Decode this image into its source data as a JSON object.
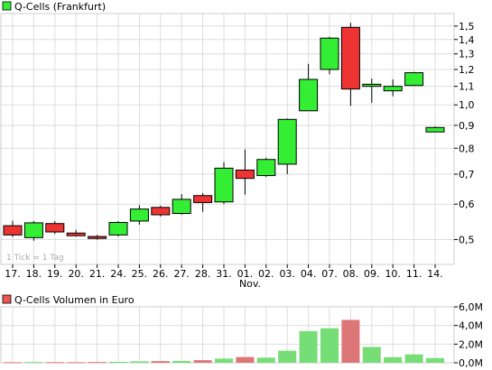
{
  "chart_data": [
    {
      "type": "candlestick",
      "title": "Q-Cells (Frankfurt)",
      "note": "1 Tick = 1 Tag",
      "month_label": "Nov.",
      "scale": "log",
      "ylim": [
        0.44,
        1.6
      ],
      "yticks": [
        "1,5",
        "1,4",
        "1,3",
        "1,2",
        "1,1",
        "1,0",
        "0,9",
        "0,8",
        "0,7",
        "0,6",
        "0,5"
      ],
      "grid": true,
      "colors": {
        "up": "#33ee33",
        "down": "#ee3333",
        "grid": "#dddddd"
      },
      "categories": [
        "17.",
        "18.",
        "19.",
        "20.",
        "21.",
        "24.",
        "25.",
        "26.",
        "27.",
        "28.",
        "31.",
        "01.",
        "02.",
        "03.",
        "04.",
        "07.",
        "08.",
        "09.",
        "10.",
        "11.",
        "14."
      ],
      "ohlc": [
        {
          "open": 0.537,
          "high": 0.551,
          "low": 0.507,
          "close": 0.512
        },
        {
          "open": 0.505,
          "high": 0.55,
          "low": 0.497,
          "close": 0.545
        },
        {
          "open": 0.543,
          "high": 0.55,
          "low": 0.515,
          "close": 0.52
        },
        {
          "open": 0.517,
          "high": 0.525,
          "low": 0.508,
          "close": 0.51
        },
        {
          "open": 0.508,
          "high": 0.512,
          "low": 0.5,
          "close": 0.503
        },
        {
          "open": 0.512,
          "high": 0.55,
          "low": 0.508,
          "close": 0.546
        },
        {
          "open": 0.55,
          "high": 0.597,
          "low": 0.54,
          "close": 0.585
        },
        {
          "open": 0.59,
          "high": 0.595,
          "low": 0.563,
          "close": 0.568
        },
        {
          "open": 0.572,
          "high": 0.632,
          "low": 0.568,
          "close": 0.615
        },
        {
          "open": 0.627,
          "high": 0.635,
          "low": 0.577,
          "close": 0.605
        },
        {
          "open": 0.607,
          "high": 0.745,
          "low": 0.6,
          "close": 0.722
        },
        {
          "open": 0.715,
          "high": 0.795,
          "low": 0.63,
          "close": 0.685
        },
        {
          "open": 0.695,
          "high": 0.762,
          "low": 0.69,
          "close": 0.755
        },
        {
          "open": 0.737,
          "high": 0.932,
          "low": 0.7,
          "close": 0.928
        },
        {
          "open": 0.97,
          "high": 1.235,
          "low": 0.97,
          "close": 1.14
        },
        {
          "open": 1.2,
          "high": 1.42,
          "low": 1.17,
          "close": 1.41
        },
        {
          "open": 1.49,
          "high": 1.525,
          "low": 0.995,
          "close": 1.085
        },
        {
          "open": 1.1,
          "high": 1.145,
          "low": 1.01,
          "close": 1.112
        },
        {
          "open": 1.075,
          "high": 1.14,
          "low": 1.045,
          "close": 1.1
        },
        {
          "open": 1.105,
          "high": 1.185,
          "low": 1.105,
          "close": 1.18
        },
        {
          "open": 0.87,
          "high": 0.895,
          "low": 0.868,
          "close": 0.89
        }
      ]
    },
    {
      "type": "bar",
      "title": "Q-Cells Volumen in Euro",
      "ylim": [
        0,
        6000000
      ],
      "yticks": [
        "6,0M",
        "4,0M",
        "2,0M",
        "0,0M"
      ],
      "grid": true,
      "categories": [
        "17.",
        "18.",
        "19.",
        "20.",
        "21.",
        "24.",
        "25.",
        "26.",
        "27.",
        "28.",
        "31.",
        "01.",
        "02.",
        "03.",
        "04.",
        "07.",
        "08.",
        "09.",
        "10.",
        "11.",
        "14."
      ],
      "values": [
        60000,
        80000,
        70000,
        60000,
        80000,
        100000,
        150000,
        180000,
        200000,
        280000,
        450000,
        620000,
        550000,
        1300000,
        3400000,
        3700000,
        4600000,
        1700000,
        600000,
        900000,
        500000
      ],
      "direction": [
        "down",
        "up",
        "down",
        "down",
        "down",
        "up",
        "up",
        "down",
        "up",
        "down",
        "up",
        "down",
        "up",
        "up",
        "up",
        "up",
        "down",
        "up",
        "up",
        "up",
        "up"
      ]
    }
  ]
}
